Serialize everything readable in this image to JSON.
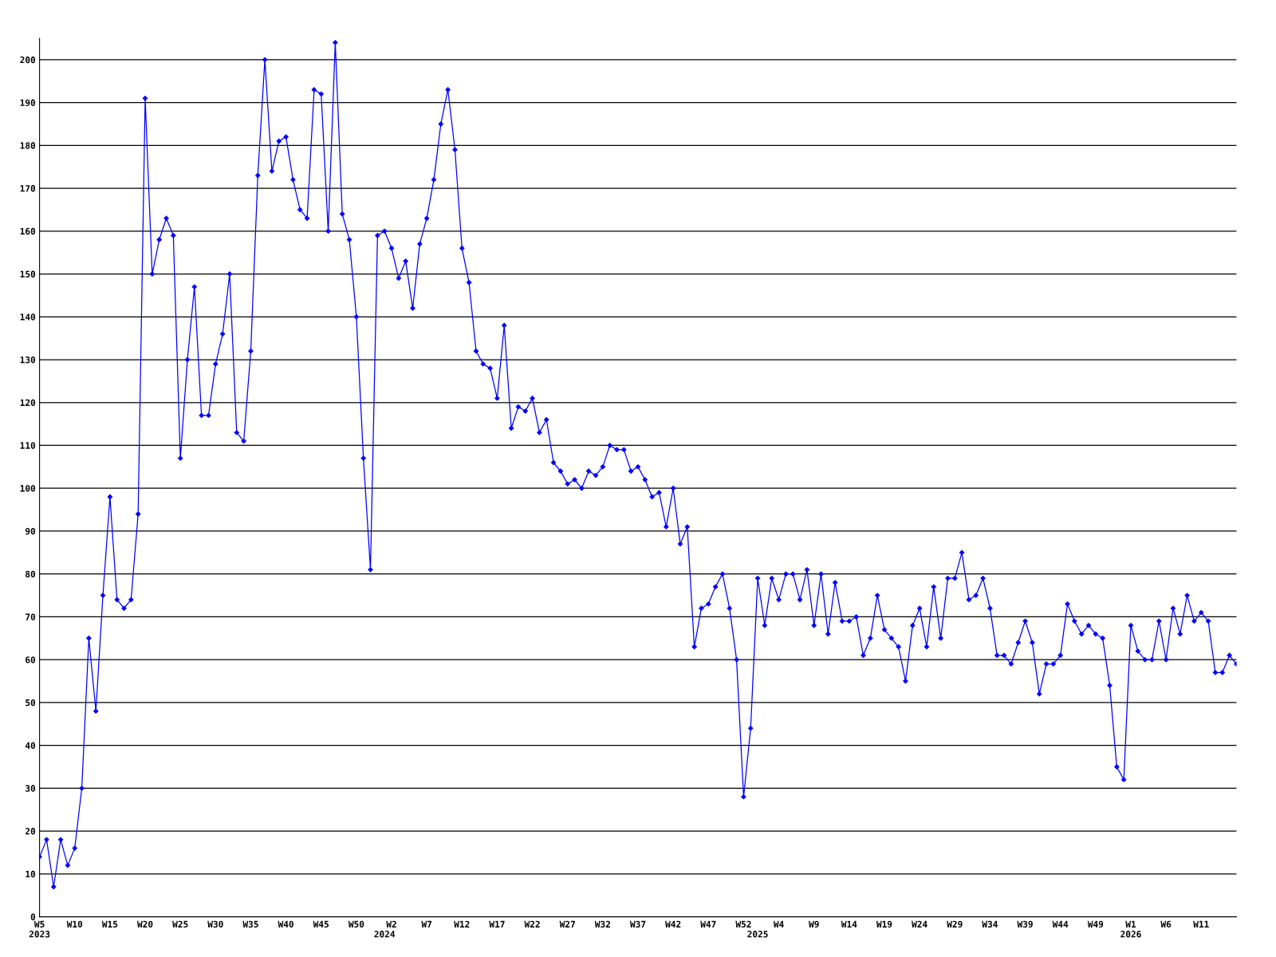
{
  "chart_data": {
    "type": "line",
    "color": "#0000ff",
    "marker": "diamond",
    "line_style": "solid",
    "grid": "y",
    "legend": false,
    "ylim": [
      0,
      205
    ],
    "yticks": [
      0,
      10,
      20,
      30,
      40,
      50,
      60,
      70,
      80,
      90,
      100,
      110,
      120,
      130,
      140,
      150,
      160,
      170,
      180,
      190,
      200
    ],
    "categories": [
      "W5\n2023",
      null,
      null,
      null,
      null,
      "W10",
      null,
      null,
      null,
      null,
      "W15",
      null,
      null,
      null,
      null,
      "W20",
      null,
      null,
      null,
      null,
      "W25",
      null,
      null,
      null,
      null,
      "W30",
      null,
      null,
      null,
      null,
      "W35",
      null,
      null,
      null,
      null,
      "W40",
      null,
      null,
      null,
      null,
      "W45",
      null,
      null,
      null,
      null,
      "W50",
      null,
      null,
      null,
      "\n2024",
      "W2",
      null,
      null,
      null,
      null,
      "W7",
      null,
      null,
      null,
      null,
      "W12",
      null,
      null,
      null,
      null,
      "W17",
      null,
      null,
      null,
      null,
      "W22",
      null,
      null,
      null,
      null,
      "W27",
      null,
      null,
      null,
      null,
      "W32",
      null,
      null,
      null,
      null,
      "W37",
      null,
      null,
      null,
      null,
      "W42",
      null,
      null,
      null,
      null,
      "W47",
      null,
      null,
      null,
      null,
      "W52",
      null,
      "\n2025",
      null,
      null,
      "W4",
      null,
      null,
      null,
      null,
      "W9",
      null,
      null,
      null,
      null,
      "W14",
      null,
      null,
      null,
      null,
      "W19",
      null,
      null,
      null,
      null,
      "W24",
      null,
      null,
      null,
      null,
      "W29",
      null,
      null,
      null,
      null,
      "W34",
      null,
      null,
      null,
      null,
      "W39",
      null,
      null,
      null,
      null,
      "W44",
      null,
      null,
      null,
      null,
      "W49",
      null,
      null,
      null,
      null,
      "W1\n2026",
      null,
      null,
      null,
      null,
      "W6",
      null,
      null,
      null,
      null,
      "W11",
      null,
      null,
      null,
      null,
      null
    ],
    "values": [
      14,
      18,
      7,
      18,
      12,
      16,
      30,
      65,
      48,
      75,
      98,
      74,
      72,
      74,
      94,
      191,
      150,
      158,
      163,
      159,
      107,
      130,
      147,
      117,
      117,
      129,
      136,
      150,
      113,
      111,
      132,
      173,
      200,
      174,
      181,
      182,
      172,
      165,
      163,
      193,
      192,
      160,
      204,
      164,
      158,
      140,
      107,
      81,
      159,
      160,
      156,
      149,
      153,
      142,
      157,
      163,
      172,
      185,
      193,
      179,
      156,
      148,
      132,
      129,
      128,
      121,
      138,
      114,
      119,
      118,
      121,
      113,
      116,
      106,
      104,
      101,
      102,
      100,
      104,
      103,
      105,
      110,
      109,
      109,
      104,
      105,
      102,
      98,
      99,
      91,
      100,
      87,
      91,
      63,
      72,
      73,
      77,
      80,
      72,
      60,
      28,
      44,
      79,
      68,
      79,
      74,
      80,
      80,
      74,
      81,
      68,
      80,
      66,
      78,
      69,
      69,
      70,
      61,
      65,
      75,
      67,
      65,
      63,
      55,
      68,
      72,
      63,
      77,
      65,
      79,
      79,
      85,
      74,
      75,
      79,
      72,
      61,
      61,
      59,
      64,
      69,
      64,
      52,
      59,
      59,
      61,
      73,
      69,
      66,
      68,
      66,
      65,
      54,
      35,
      32,
      68,
      62,
      60,
      60,
      69,
      60,
      72,
      66,
      75,
      69,
      71,
      69,
      57,
      57,
      61,
      59
    ]
  }
}
